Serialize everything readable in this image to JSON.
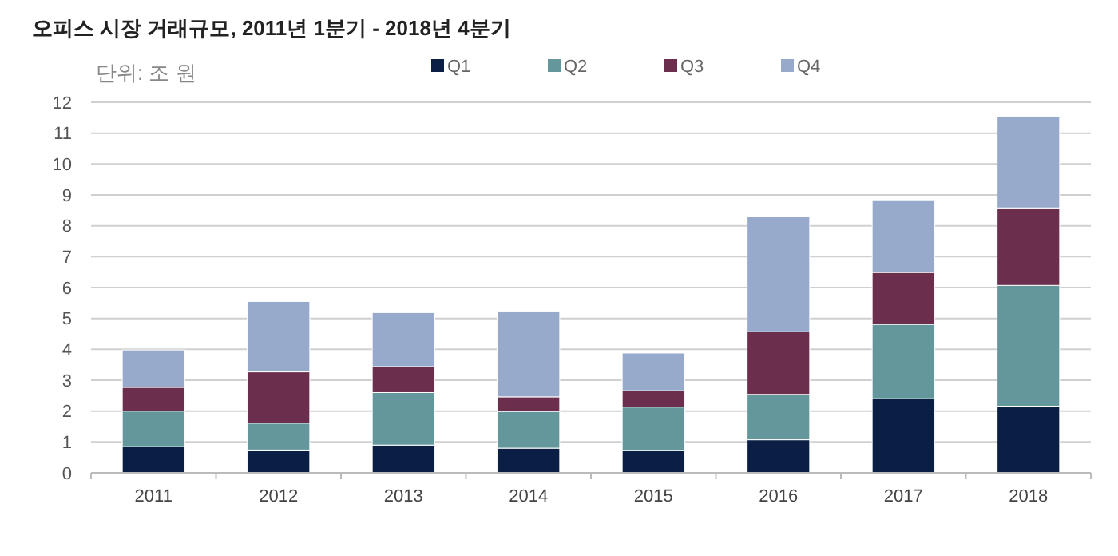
{
  "chart_data": {
    "type": "bar",
    "title": "오피스 시장 거래규모, 2011년 1분기  - 2018년 4분기",
    "subtitle": "단위: 조 원",
    "categories": [
      "2011",
      "2012",
      "2013",
      "2014",
      "2015",
      "2016",
      "2017",
      "2018"
    ],
    "stacked": true,
    "series": [
      {
        "name": "Q1",
        "color": "#0b1f45",
        "values": [
          0.85,
          0.74,
          0.9,
          0.8,
          0.73,
          1.07,
          2.4,
          2.16
        ]
      },
      {
        "name": "Q2",
        "color": "#64979c",
        "values": [
          1.15,
          0.87,
          1.7,
          1.19,
          1.4,
          1.47,
          2.41,
          3.91
        ]
      },
      {
        "name": "Q3",
        "color": "#6b2f4d",
        "values": [
          0.77,
          1.66,
          0.84,
          0.47,
          0.53,
          2.03,
          1.68,
          2.51
        ]
      },
      {
        "name": "Q4",
        "color": "#98aacb",
        "values": [
          1.21,
          2.28,
          1.75,
          2.78,
          1.22,
          3.72,
          2.35,
          2.96
        ]
      }
    ],
    "ylim": [
      0,
      12
    ],
    "yticks": [
      0,
      1,
      2,
      3,
      4,
      5,
      6,
      7,
      8,
      9,
      10,
      11,
      12
    ],
    "grid": "y",
    "legend": "top"
  }
}
